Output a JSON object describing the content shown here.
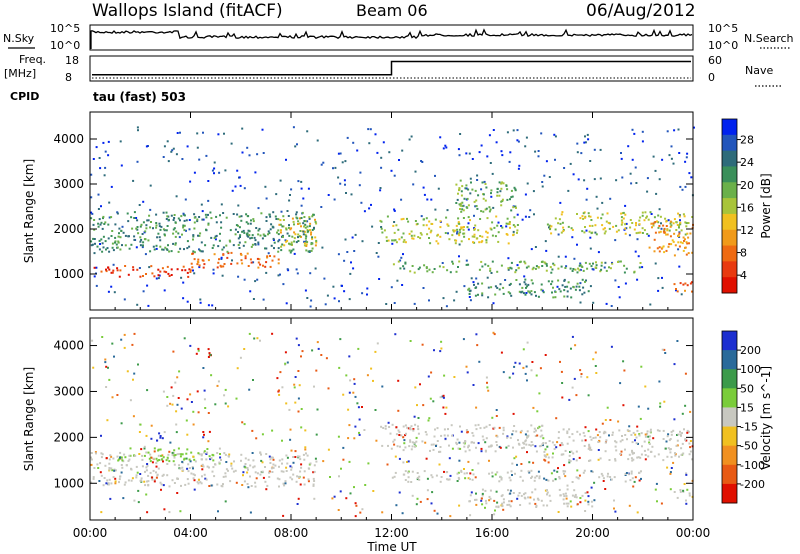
{
  "header": {
    "station": "Wallops Island (fitACF)",
    "beam": "Beam 06",
    "date": "06/Aug/2012"
  },
  "top_panels": {
    "nsky_label": "N.Sky",
    "nsky_ticks": [
      "10^5",
      "10^0"
    ],
    "nsearch_label": "N.Search",
    "nsearch_ticks": [
      "10^5",
      "10^0"
    ],
    "freq_label": "Freq.",
    "freq_unit": "[MHz]",
    "freq_ticks": [
      "18",
      "8"
    ],
    "nave_label": "Nave",
    "nave_ticks": [
      "60",
      "0"
    ],
    "cpid_label": "CPID",
    "cpid_value": "tau (fast) 503",
    "freq_step_hours": 12,
    "freq_before": 10.5,
    "freq_after": 15.8
  },
  "chart_data": [
    {
      "type": "heatmap",
      "name": "power",
      "ylabel": "Slant Range [km]",
      "xlabel": "",
      "x_ticks": [
        "00:00",
        "04:00",
        "08:00",
        "12:00",
        "16:00",
        "20:00",
        "00:00"
      ],
      "y_ticks": [
        "1000",
        "2000",
        "3000",
        "4000"
      ],
      "xlim": [
        0,
        24
      ],
      "ylim": [
        200,
        4600
      ],
      "colorbar": {
        "label": "Power [dB]",
        "ticks": [
          "28",
          "24",
          "20",
          "16",
          "12",
          "8",
          "4"
        ],
        "colors": [
          "#0022ee",
          "#2255bb",
          "#2e6b7a",
          "#3a8f5a",
          "#6ab04a",
          "#a8c43a",
          "#f0c020",
          "#f09a1a",
          "#ee6a12",
          "#e83a10",
          "#e01000"
        ]
      },
      "bands": [
        {
          "t0": 0,
          "t1": 4,
          "r0": 950,
          "r1": 1200,
          "level": 9
        },
        {
          "t0": 4,
          "t1": 7.5,
          "r0": 1150,
          "r1": 1500,
          "level": 8
        },
        {
          "t0": 7.5,
          "t1": 9,
          "r0": 1600,
          "r1": 2300,
          "level": 6
        },
        {
          "t0": 0,
          "t1": 9,
          "r0": 1500,
          "r1": 2400,
          "level": 3
        },
        {
          "t0": 11.5,
          "t1": 17,
          "r0": 1700,
          "r1": 2300,
          "level": 5
        },
        {
          "t0": 12,
          "t1": 22,
          "r0": 1050,
          "r1": 1300,
          "level": 4
        },
        {
          "t0": 15,
          "t1": 20,
          "r0": 500,
          "r1": 900,
          "level": 3
        },
        {
          "t0": 18,
          "t1": 24,
          "r0": 1900,
          "r1": 2400,
          "level": 5
        },
        {
          "t0": 22.2,
          "t1": 24,
          "r0": 1400,
          "r1": 2200,
          "level": 7
        },
        {
          "t0": 14.5,
          "t1": 17,
          "r0": 2400,
          "r1": 3100,
          "level": 4
        },
        {
          "t0": 23.2,
          "t1": 24,
          "r0": 600,
          "r1": 900,
          "level": 8
        }
      ]
    },
    {
      "type": "heatmap",
      "name": "velocity",
      "ylabel": "Slant Range [km]",
      "xlabel": "Time UT",
      "x_ticks": [
        "00:00",
        "04:00",
        "08:00",
        "12:00",
        "16:00",
        "20:00",
        "00:00"
      ],
      "y_ticks": [
        "1000",
        "2000",
        "3000",
        "4000"
      ],
      "xlim": [
        0,
        24
      ],
      "ylim": [
        200,
        4600
      ],
      "colorbar": {
        "label": "Velocity [m s^-1]",
        "ticks": [
          "200",
          "100",
          "50",
          "15",
          "-15",
          "-50",
          "-100",
          "-200"
        ],
        "colors": [
          "#1c2fd0",
          "#2a6a9a",
          "#3c9a4a",
          "#7acc3a",
          "#c8c8c0",
          "#f0c020",
          "#f09020",
          "#e85a14",
          "#e01000"
        ]
      },
      "bands": [
        {
          "t0": 0,
          "t1": 9,
          "r0": 950,
          "r1": 1700,
          "level": 4
        },
        {
          "t0": 11.5,
          "t1": 18,
          "r0": 1700,
          "r1": 2300,
          "level": 4
        },
        {
          "t0": 12,
          "t1": 22,
          "r0": 1050,
          "r1": 1300,
          "level": 4
        },
        {
          "t0": 18,
          "t1": 24,
          "r0": 1500,
          "r1": 2200,
          "level": 4
        },
        {
          "t0": 2.2,
          "t1": 3.1,
          "r0": 1950,
          "r1": 2150,
          "level": 0
        },
        {
          "t0": 4.2,
          "t1": 4.8,
          "r0": 3700,
          "r1": 4000,
          "level": 8
        },
        {
          "t0": 1,
          "t1": 5,
          "r0": 1500,
          "r1": 1800,
          "level": 3
        },
        {
          "t0": 15,
          "t1": 20,
          "r0": 500,
          "r1": 900,
          "level": 4
        },
        {
          "t0": 23.2,
          "t1": 24,
          "r0": 600,
          "r1": 900,
          "level": 4
        }
      ]
    }
  ]
}
